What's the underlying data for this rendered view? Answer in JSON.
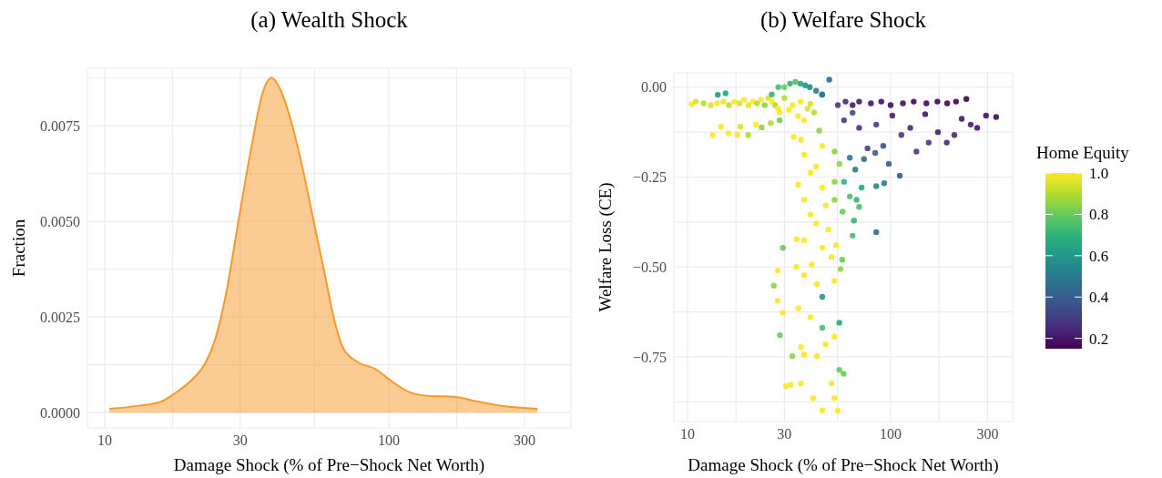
{
  "chart_data": [
    {
      "type": "area",
      "title": "(a) Wealth Shock",
      "xlabel": "Damage Shock (% of Pre−Shock Net Worth)",
      "ylabel": "Fraction",
      "color": "#f7982a",
      "x": [
        10.4,
        13.2,
        15.7,
        17.7,
        20.5,
        22.4,
        24.5,
        26.7,
        29.6,
        32.9,
        35.9,
        38.7,
        41.6,
        45.5,
        49.7,
        54.3,
        59.3,
        63.9,
        68.7,
        77.3,
        89.7,
        101,
        117,
        136,
        172,
        199,
        252,
        333
      ],
      "values": [
        0.0001,
        0.00018,
        0.00028,
        0.00051,
        0.00089,
        0.00124,
        0.00192,
        0.00308,
        0.00503,
        0.00697,
        0.00834,
        0.00875,
        0.00843,
        0.00756,
        0.00639,
        0.00503,
        0.00367,
        0.0025,
        0.00172,
        0.00133,
        0.00114,
        0.00085,
        0.00055,
        0.00044,
        0.00041,
        0.00031,
        0.00017,
        0.0001
      ],
      "log": "x",
      "xlim": [
        8.7,
        437
      ],
      "xticks": [
        10,
        {
          "value": 17.32,
          "label": null
        },
        30,
        {
          "value": 54.77,
          "label": null
        },
        100,
        {
          "value": 173.2,
          "label": null
        },
        300
      ],
      "ylim": [
        -0.0004,
        0.009
      ],
      "yticks": [
        {
          "value": 0,
          "label": "0.0000"
        },
        {
          "value": 0.00125,
          "label": null
        },
        {
          "value": 0.0025,
          "label": "0.0025"
        },
        {
          "value": 0.00375,
          "label": null
        },
        {
          "value": 0.005,
          "label": "0.0050"
        },
        {
          "value": 0.00625,
          "label": null
        },
        {
          "value": 0.0075,
          "label": "0.0075"
        },
        {
          "value": 0.00875,
          "label": null
        }
      ],
      "grid": true
    },
    {
      "type": "scatter",
      "title": "(b) Welfare Shock",
      "xlabel": "Damage Shock (% of Pre−Shock Net Worth)",
      "ylabel": "Welfare Loss (CE)",
      "clabel": "Home Equity",
      "marker": "circle",
      "x": [
        10.5,
        11,
        12,
        13,
        14,
        15,
        16,
        17,
        18,
        19,
        20,
        21,
        22,
        23,
        24,
        25,
        26,
        27,
        28,
        14.1,
        15.4,
        13.3,
        14.6,
        15.9,
        17.6,
        18.2,
        19.9,
        21.7,
        23.2,
        25.7,
        28.4,
        26,
        28,
        30,
        32,
        34,
        36,
        38,
        40,
        43,
        46,
        49.9,
        30,
        33,
        36,
        39,
        42,
        35,
        31.5,
        28.4,
        37.5,
        40.3,
        44.5,
        46,
        55,
        60,
        65,
        70,
        80,
        90,
        100,
        115,
        130,
        150,
        170,
        190,
        210,
        236,
        295,
        331,
        267,
        248,
        224,
        206,
        189,
        171,
        154,
        148,
        134,
        125,
        113,
        102,
        92,
        85,
        77,
        70,
        65,
        59,
        111,
        93,
        84,
        85,
        98,
        74,
        67,
        63,
        72,
        85,
        59,
        63,
        70,
        66,
        65,
        58,
        53,
        68,
        35.1,
        37.5,
        40.3,
        43,
        49.4,
        37.5,
        40.3,
        46.1,
        53,
        36.2,
        46.1,
        53,
        43,
        48,
        56,
        33.3,
        29.5,
        27.8,
        26.6,
        27.8,
        29.5,
        28.5,
        30.5,
        32.2,
        36.2,
        41.6,
        46.1,
        54.9,
        52.9,
        51.2,
        58.7,
        55.9,
        43.3,
        37.5,
        32.8,
        36.2,
        47.8,
        52.9,
        46.1,
        55.9,
        40.3,
        35.1,
        46.1,
        43.3,
        52.9,
        37.5,
        34.4,
        56.7,
        40.9,
        51.2,
        46.1,
        37.5,
        53.9,
        57.8,
        34.5
      ],
      "values": [
        -0.047,
        -0.04,
        -0.045,
        -0.05,
        -0.045,
        -0.04,
        -0.05,
        -0.04,
        -0.045,
        -0.035,
        -0.05,
        -0.04,
        -0.045,
        -0.035,
        -0.05,
        -0.03,
        -0.04,
        -0.05,
        -0.06,
        -0.021,
        -0.017,
        -0.133,
        -0.11,
        -0.128,
        -0.133,
        -0.11,
        -0.133,
        -0.104,
        -0.112,
        -0.1,
        -0.092,
        -0.02,
        0,
        0,
        0.01,
        0.015,
        0.01,
        0.005,
        0,
        -0.01,
        -0.02,
        0.021,
        -0.03,
        -0.05,
        -0.04,
        -0.06,
        -0.07,
        -0.08,
        -0.063,
        -0.07,
        -0.092,
        -0.046,
        -0.121,
        -0.021,
        -0.05,
        -0.04,
        -0.05,
        -0.04,
        -0.045,
        -0.04,
        -0.05,
        -0.045,
        -0.04,
        -0.045,
        -0.04,
        -0.045,
        -0.04,
        -0.033,
        -0.079,
        -0.083,
        -0.113,
        -0.104,
        -0.088,
        -0.133,
        -0.154,
        -0.125,
        -0.154,
        -0.075,
        -0.179,
        -0.113,
        -0.133,
        -0.079,
        -0.163,
        -0.104,
        -0.17,
        -0.113,
        -0.071,
        -0.092,
        -0.246,
        -0.267,
        -0.183,
        -0.275,
        -0.213,
        -0.2,
        -0.229,
        -0.196,
        -0.279,
        -0.403,
        -0.263,
        -0.304,
        -0.333,
        -0.371,
        -0.413,
        -0.346,
        -0.313,
        -0.313,
        -0.271,
        -0.313,
        -0.354,
        -0.379,
        -0.396,
        -0.188,
        -0.238,
        -0.279,
        -0.263,
        -0.146,
        -0.163,
        -0.179,
        -0.221,
        -0.329,
        -0.213,
        -0.138,
        -0.447,
        -0.51,
        -0.552,
        -0.594,
        -0.627,
        -0.69,
        -0.832,
        -0.828,
        -0.824,
        -0.865,
        -0.899,
        -0.9,
        -0.865,
        -0.824,
        -0.797,
        -0.786,
        -0.748,
        -0.744,
        -0.748,
        -0.723,
        -0.715,
        -0.694,
        -0.669,
        -0.655,
        -0.64,
        -0.615,
        -0.583,
        -0.548,
        -0.539,
        -0.523,
        -0.5,
        -0.506,
        -0.493,
        -0.472,
        -0.447,
        -0.426,
        -0.439,
        -0.48,
        -0.423
      ],
      "cvalues": [
        1,
        0.95,
        0.9,
        0.95,
        1,
        0.98,
        0.92,
        1,
        0.95,
        1,
        0.97,
        1,
        0.9,
        1,
        0.85,
        0.95,
        1,
        0.9,
        1,
        0.6,
        0.65,
        1,
        1,
        1,
        1,
        0.95,
        0.9,
        1,
        0.85,
        0.9,
        0.8,
        0.7,
        0.75,
        0.8,
        0.7,
        0.75,
        0.65,
        0.6,
        0.55,
        0.5,
        0.45,
        0.45,
        0.9,
        1,
        1,
        0.95,
        0.9,
        1,
        1,
        1,
        1,
        0.95,
        0.85,
        0.5,
        0.3,
        0.25,
        0.22,
        0.2,
        0.2,
        0.18,
        0.17,
        0.17,
        0.16,
        0.16,
        0.15,
        0.15,
        0.15,
        0.15,
        0.18,
        0.17,
        0.2,
        0.22,
        0.2,
        0.25,
        0.25,
        0.22,
        0.28,
        0.2,
        0.3,
        0.25,
        0.3,
        0.22,
        0.35,
        0.3,
        0.32,
        0.28,
        0.35,
        0.3,
        0.4,
        0.5,
        0.4,
        0.55,
        0.4,
        0.45,
        0.5,
        0.5,
        0.65,
        0.45,
        0.7,
        0.75,
        0.75,
        0.7,
        0.75,
        0.8,
        0.85,
        0.7,
        1,
        1,
        1,
        1,
        1,
        1,
        1,
        1,
        0.85,
        1,
        1,
        0.85,
        1,
        1,
        0.85,
        1,
        0.8,
        1,
        0.85,
        1,
        1,
        0.8,
        1,
        1,
        1,
        1,
        1,
        1,
        1,
        1,
        0.8,
        0.8,
        1,
        1,
        0.85,
        1,
        1,
        1,
        0.75,
        0.65,
        1,
        1,
        0.6,
        1,
        1,
        1,
        1,
        0.85,
        1,
        1,
        1,
        1,
        1,
        0.8,
        1
      ],
      "clim": [
        0.15,
        1.0
      ],
      "cticks": [
        0.2,
        0.4,
        0.6,
        0.8,
        {
          "value": 1,
          "label": "1.0"
        }
      ],
      "log": "x",
      "xlim": [
        8.57,
        399
      ],
      "xticks": [
        10,
        {
          "value": 17.32,
          "label": null
        },
        30,
        {
          "value": 54.77,
          "label": null
        },
        100,
        {
          "value": 173.2,
          "label": null
        },
        300
      ],
      "ylim": [
        -0.93,
        0.04
      ],
      "yticks": [
        {
          "value": -0.875,
          "label": null
        },
        {
          "value": -0.75,
          "label": "−0.75"
        },
        {
          "value": -0.625,
          "label": null
        },
        {
          "value": -0.5,
          "label": "−0.50"
        },
        {
          "value": -0.375,
          "label": null
        },
        {
          "value": -0.25,
          "label": "−0.25"
        },
        {
          "value": -0.125,
          "label": null
        },
        {
          "value": 0,
          "label": "0.00"
        }
      ],
      "grid": true
    }
  ]
}
